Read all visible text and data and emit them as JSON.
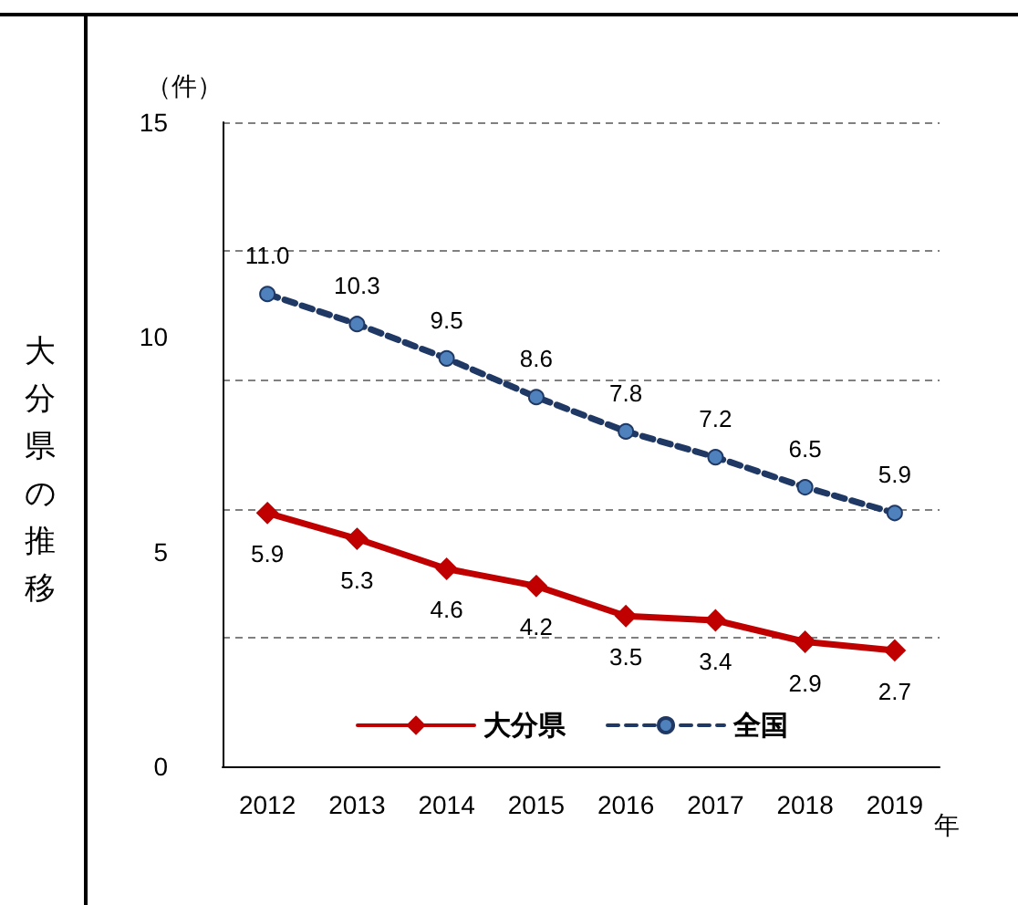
{
  "chart_data": {
    "type": "line",
    "ylabel": "（件）",
    "xlabel": "年",
    "annotations": [
      "大分県の推移"
    ],
    "categories": [
      "2012",
      "2013",
      "2014",
      "2015",
      "2016",
      "2017",
      "2018",
      "2019"
    ],
    "series": [
      {
        "name": "大分県",
        "color": "#c00000",
        "marker": "diamond",
        "line_style": "solid",
        "values": [
          5.9,
          5.3,
          4.6,
          4.2,
          3.5,
          3.4,
          2.9,
          2.7
        ],
        "value_labels": [
          "5.9",
          "5.3",
          "4.6",
          "4.2",
          "3.5",
          "3.4",
          "2.9",
          "2.7"
        ]
      },
      {
        "name": "全国",
        "color": "#1f3864",
        "marker": "circle",
        "line_style": "dashed",
        "values": [
          11.0,
          10.3,
          9.5,
          8.6,
          7.8,
          7.2,
          6.5,
          5.9
        ],
        "value_labels": [
          "11.0",
          "10.3",
          "9.5",
          "8.6",
          "7.8",
          "7.2",
          "6.5",
          "5.9"
        ]
      }
    ],
    "ylim": [
      0,
      15
    ],
    "yticks": [
      0,
      5,
      10,
      15
    ],
    "grid": "y",
    "legend": "bottom"
  }
}
